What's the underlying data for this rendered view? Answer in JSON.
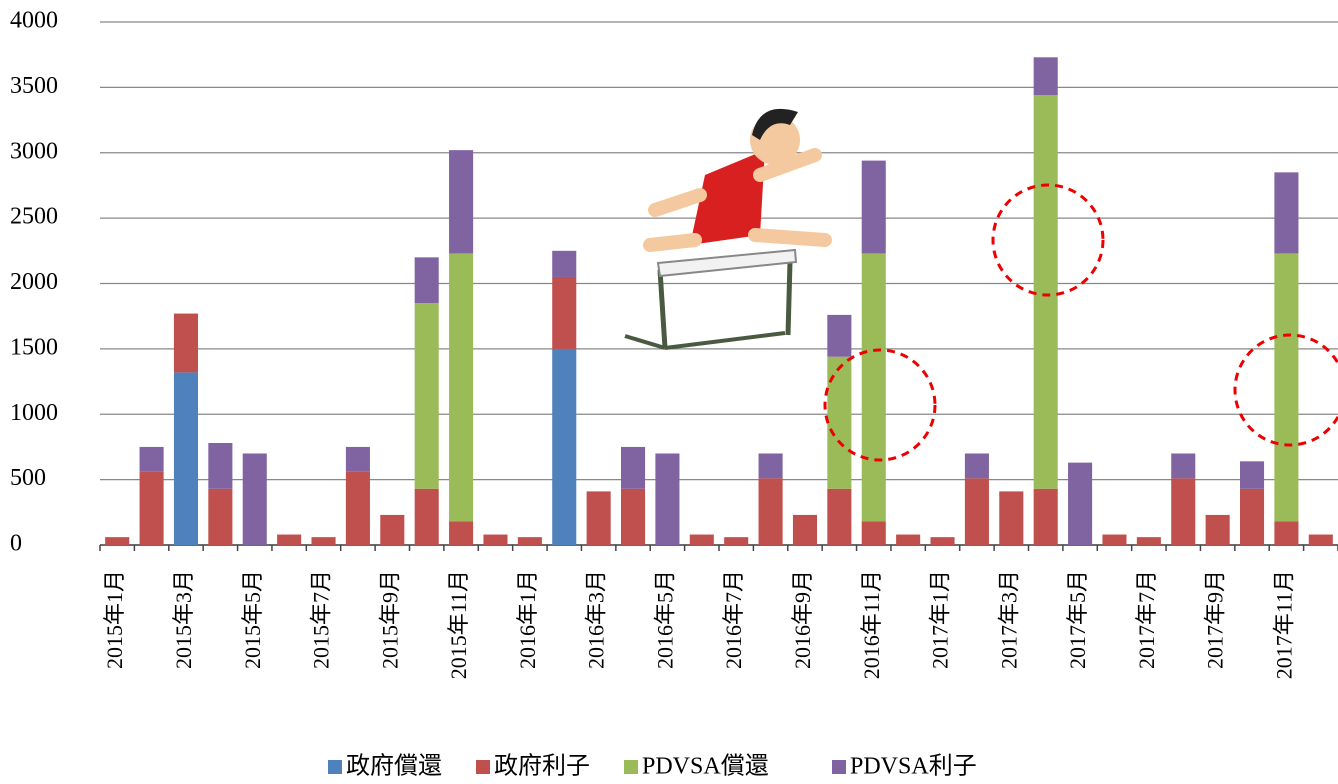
{
  "chart_data": {
    "type": "stacked_bar",
    "categories": [
      "2015年1月",
      null,
      "2015年3月",
      null,
      "2015年5月",
      null,
      "2015年7月",
      null,
      "2015年9月",
      null,
      "2015年11月",
      null,
      "2016年1月",
      null,
      "2016年3月",
      null,
      "2016年5月",
      null,
      "2016年7月",
      null,
      "2016年9月",
      null,
      "2016年11月",
      null,
      "2017年1月",
      null,
      "2017年3月",
      null,
      "2017年5月",
      null,
      "2017年7月",
      null,
      "2017年9月",
      null,
      "2017年11月",
      null
    ],
    "series": [
      {
        "name": "政府償還",
        "color": "#4f81bd",
        "values": [
          null,
          null,
          1320,
          null,
          null,
          null,
          null,
          null,
          null,
          null,
          null,
          null,
          null,
          1500,
          null,
          null,
          null,
          null,
          null,
          null,
          null,
          null,
          null,
          null,
          null,
          null,
          null,
          null,
          null,
          null,
          null,
          null,
          null,
          null,
          null,
          null
        ]
      },
      {
        "name": "政府利子",
        "color": "#c0504d",
        "values": [
          60,
          560,
          450,
          430,
          null,
          80,
          60,
          560,
          230,
          430,
          180,
          80,
          60,
          550,
          410,
          430,
          null,
          80,
          60,
          510,
          230,
          430,
          180,
          80,
          60,
          510,
          410,
          430,
          null,
          80,
          60,
          510,
          230,
          430,
          180,
          80
        ]
      },
      {
        "name": "PDVSA償還",
        "color": "#9bbb59",
        "values": [
          null,
          null,
          null,
          null,
          null,
          null,
          null,
          null,
          null,
          1420,
          2050,
          null,
          null,
          null,
          null,
          null,
          null,
          null,
          null,
          null,
          null,
          1010,
          2050,
          null,
          null,
          null,
          null,
          3010,
          null,
          null,
          null,
          null,
          null,
          null,
          2050,
          null
        ]
      },
      {
        "name": "PDVSA利子",
        "color": "#8064a2",
        "values": [
          null,
          190,
          null,
          350,
          700,
          null,
          null,
          190,
          null,
          350,
          790,
          null,
          null,
          200,
          null,
          320,
          700,
          null,
          null,
          190,
          null,
          320,
          710,
          null,
          null,
          190,
          null,
          290,
          630,
          null,
          null,
          190,
          null,
          210,
          620,
          null
        ]
      }
    ],
    "ylim": [
      0,
      4000
    ],
    "yticks": [
      0,
      500,
      1000,
      1500,
      2000,
      2500,
      3000,
      3500,
      4000
    ],
    "grid": true,
    "legend": "bottom"
  }
}
